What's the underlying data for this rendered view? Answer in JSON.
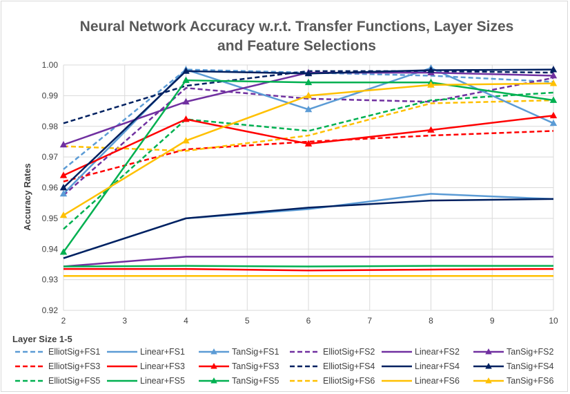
{
  "chart_data": {
    "type": "line",
    "title_line1": "Neural Network Accuracy w.r.t. Transfer Functions, Layer Sizes",
    "title_line2": "and Feature Selections",
    "xlabel": "Layer Size 1-5",
    "ylabel": "Accuracy Rates",
    "x": [
      2,
      4,
      6,
      8,
      10
    ],
    "x_ticks": [
      2,
      3,
      4,
      5,
      6,
      7,
      8,
      9,
      10
    ],
    "xlim": [
      2,
      10
    ],
    "ylim": [
      0.92,
      1.0
    ],
    "y_ticks": [
      "0.92",
      "0.93",
      "0.94",
      "0.95",
      "0.96",
      "0.97",
      "0.98",
      "0.99",
      "1.00"
    ],
    "grid": true,
    "legend_position": "bottom",
    "series": [
      {
        "name": "ElliotSig+FS1",
        "color": "#5b9bd5",
        "style": "dashed",
        "marker": "none",
        "values": [
          0.966,
          0.9985,
          0.9975,
          0.9965,
          0.9945
        ]
      },
      {
        "name": "Linear+FS1",
        "color": "#5b9bd5",
        "style": "solid",
        "marker": "none",
        "values": [
          0.937,
          0.95,
          0.953,
          0.958,
          0.9563
        ]
      },
      {
        "name": "TanSig+FS1",
        "color": "#5b9bd5",
        "style": "solid",
        "marker": "triangle",
        "values": [
          0.958,
          0.9985,
          0.9855,
          0.999,
          0.981
        ]
      },
      {
        "name": "ElliotSig+FS2",
        "color": "#7030a0",
        "style": "dashed",
        "marker": "none",
        "values": [
          0.9575,
          0.9925,
          0.989,
          0.988,
          0.9958
        ]
      },
      {
        "name": "Linear+FS2",
        "color": "#7030a0",
        "style": "solid",
        "marker": "none",
        "values": [
          0.9343,
          0.9375,
          0.9375,
          0.9375,
          0.9375
        ]
      },
      {
        "name": "TanSig+FS2",
        "color": "#7030a0",
        "style": "solid",
        "marker": "triangle",
        "values": [
          0.974,
          0.988,
          0.9975,
          0.9975,
          0.9965
        ]
      },
      {
        "name": "ElliotSig+FS3",
        "color": "#ff0000",
        "style": "dashed",
        "marker": "none",
        "values": [
          0.962,
          0.9725,
          0.975,
          0.977,
          0.9785
        ]
      },
      {
        "name": "Linear+FS3",
        "color": "#ff0000",
        "style": "solid",
        "marker": "none",
        "values": [
          0.9335,
          0.9335,
          0.933,
          0.9333,
          0.9335
        ]
      },
      {
        "name": "TanSig+FS3",
        "color": "#ff0000",
        "style": "solid",
        "marker": "triangle",
        "values": [
          0.964,
          0.9823,
          0.9743,
          0.9788,
          0.9835
        ]
      },
      {
        "name": "ElliotSig+FS4",
        "color": "#002060",
        "style": "dashed",
        "marker": "none",
        "values": [
          0.981,
          0.9932,
          0.998,
          0.998,
          0.9975
        ]
      },
      {
        "name": "Linear+FS4",
        "color": "#002060",
        "style": "solid",
        "marker": "none",
        "values": [
          0.937,
          0.95,
          0.9535,
          0.9558,
          0.9563
        ]
      },
      {
        "name": "TanSig+FS4",
        "color": "#002060",
        "style": "solid",
        "marker": "triangle",
        "values": [
          0.96,
          0.998,
          0.9972,
          0.9983,
          0.9985
        ]
      },
      {
        "name": "ElliotSig+FS5",
        "color": "#00b050",
        "style": "dashed",
        "marker": "none",
        "values": [
          0.9465,
          0.9823,
          0.9785,
          0.9885,
          0.991
        ]
      },
      {
        "name": "Linear+FS5",
        "color": "#00b050",
        "style": "solid",
        "marker": "none",
        "values": [
          0.9343,
          0.9345,
          0.9343,
          0.9345,
          0.9345
        ]
      },
      {
        "name": "TanSig+FS5",
        "color": "#00b050",
        "style": "solid",
        "marker": "triangle",
        "values": [
          0.939,
          0.995,
          0.9943,
          0.9943,
          0.9885
        ]
      },
      {
        "name": "ElliotSig+FS6",
        "color": "#ffc000",
        "style": "dashed",
        "marker": "none",
        "values": [
          0.9735,
          0.972,
          0.977,
          0.9875,
          0.9885
        ]
      },
      {
        "name": "Linear+FS6",
        "color": "#ffc000",
        "style": "solid",
        "marker": "none",
        "values": [
          0.9312,
          0.9312,
          0.9312,
          0.9312,
          0.9312
        ]
      },
      {
        "name": "TanSig+FS6",
        "color": "#ffc000",
        "style": "solid",
        "marker": "triangle",
        "values": [
          0.951,
          0.9753,
          0.99,
          0.9935,
          0.994
        ]
      }
    ]
  }
}
